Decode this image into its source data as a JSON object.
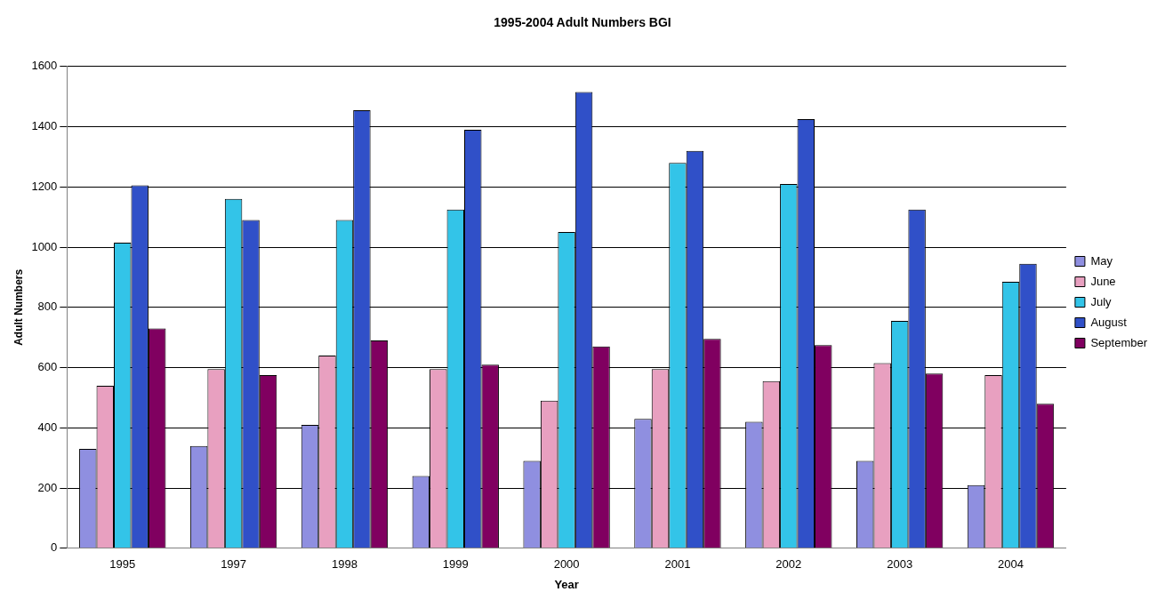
{
  "chart_data": {
    "type": "bar",
    "title": "1995-2004 Adult Numbers BGI",
    "xlabel": "Year",
    "ylabel": "Adult Numbers",
    "categories": [
      "1995",
      "1997",
      "1998",
      "1999",
      "2000",
      "2001",
      "2002",
      "2003",
      "2004"
    ],
    "series": [
      {
        "name": "May",
        "color": "#8f8fe0",
        "values": [
          330,
          340,
          410,
          240,
          290,
          430,
          420,
          290,
          210
        ]
      },
      {
        "name": "June",
        "color": "#e8a0c0",
        "values": [
          540,
          595,
          640,
          595,
          490,
          595,
          555,
          615,
          575
        ]
      },
      {
        "name": "July",
        "color": "#33c4e8",
        "values": [
          1015,
          1160,
          1090,
          1125,
          1050,
          1280,
          1210,
          755,
          885
        ]
      },
      {
        "name": "August",
        "color": "#3050c8",
        "values": [
          1205,
          1090,
          1455,
          1390,
          1515,
          1320,
          1425,
          1125,
          945
        ]
      },
      {
        "name": "September",
        "color": "#800060",
        "values": [
          730,
          575,
          690,
          610,
          670,
          695,
          675,
          580,
          480
        ]
      }
    ],
    "ylim": [
      0,
      1600
    ],
    "yticks": [
      0,
      200,
      400,
      600,
      800,
      1000,
      1200,
      1400,
      1600
    ],
    "grid": "y",
    "legend": "right"
  }
}
